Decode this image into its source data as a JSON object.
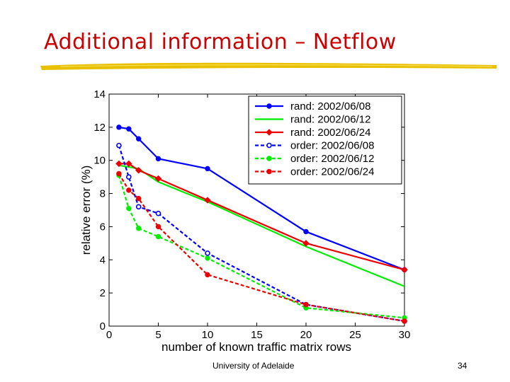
{
  "slide": {
    "title": "Additional information – Netflow",
    "footer": "University of Adelaide",
    "page_number": "34"
  },
  "colors": {
    "title": "#cc0000",
    "underline": "#e8c000"
  },
  "chart_data": {
    "type": "line",
    "title": "",
    "xlabel": "number of known traffic matrix rows",
    "ylabel": "relative error (%)",
    "xlim": [
      0,
      30
    ],
    "ylim": [
      0,
      14
    ],
    "xticks": [
      0,
      5,
      10,
      15,
      20,
      25,
      30
    ],
    "yticks": [
      0,
      2,
      4,
      6,
      8,
      10,
      12,
      14
    ],
    "legend_position": "top-right",
    "series": [
      {
        "name": "rand: 2002/06/08",
        "color": "#0000ff",
        "dash": "solid",
        "marker": "dot",
        "x": [
          1,
          2,
          3,
          5,
          10,
          20,
          30
        ],
        "y": [
          12.0,
          11.9,
          11.3,
          10.1,
          9.5,
          5.7,
          3.4
        ]
      },
      {
        "name": "rand: 2002/06/12",
        "color": "#00ee00",
        "dash": "solid",
        "marker": "none",
        "x": [
          1,
          2,
          3,
          5,
          10,
          20,
          30
        ],
        "y": [
          9.7,
          9.6,
          9.5,
          8.7,
          7.5,
          4.8,
          2.4
        ]
      },
      {
        "name": "rand: 2002/06/24",
        "color": "#ee0000",
        "dash": "solid",
        "marker": "diamond",
        "x": [
          1,
          2,
          3,
          5,
          10,
          20,
          30
        ],
        "y": [
          9.8,
          9.8,
          9.4,
          8.9,
          7.6,
          5.0,
          3.4
        ]
      },
      {
        "name": "order: 2002/06/08",
        "color": "#0000ff",
        "dash": "dashed",
        "marker": "circle",
        "x": [
          1,
          2,
          3,
          5,
          10,
          20,
          30
        ],
        "y": [
          10.9,
          9.0,
          7.2,
          6.8,
          4.4,
          1.3,
          0.3
        ]
      },
      {
        "name": "order: 2002/06/12",
        "color": "#00ee00",
        "dash": "dashed",
        "marker": "dot",
        "x": [
          1,
          2,
          3,
          5,
          10,
          20,
          30
        ],
        "y": [
          9.1,
          7.1,
          5.9,
          5.4,
          4.1,
          1.1,
          0.5
        ]
      },
      {
        "name": "order: 2002/06/24",
        "color": "#ee0000",
        "dash": "dashed",
        "marker": "dot",
        "x": [
          1,
          2,
          3,
          5,
          10,
          20,
          30
        ],
        "y": [
          9.2,
          8.2,
          7.7,
          6.0,
          3.1,
          1.3,
          0.3
        ]
      }
    ]
  }
}
